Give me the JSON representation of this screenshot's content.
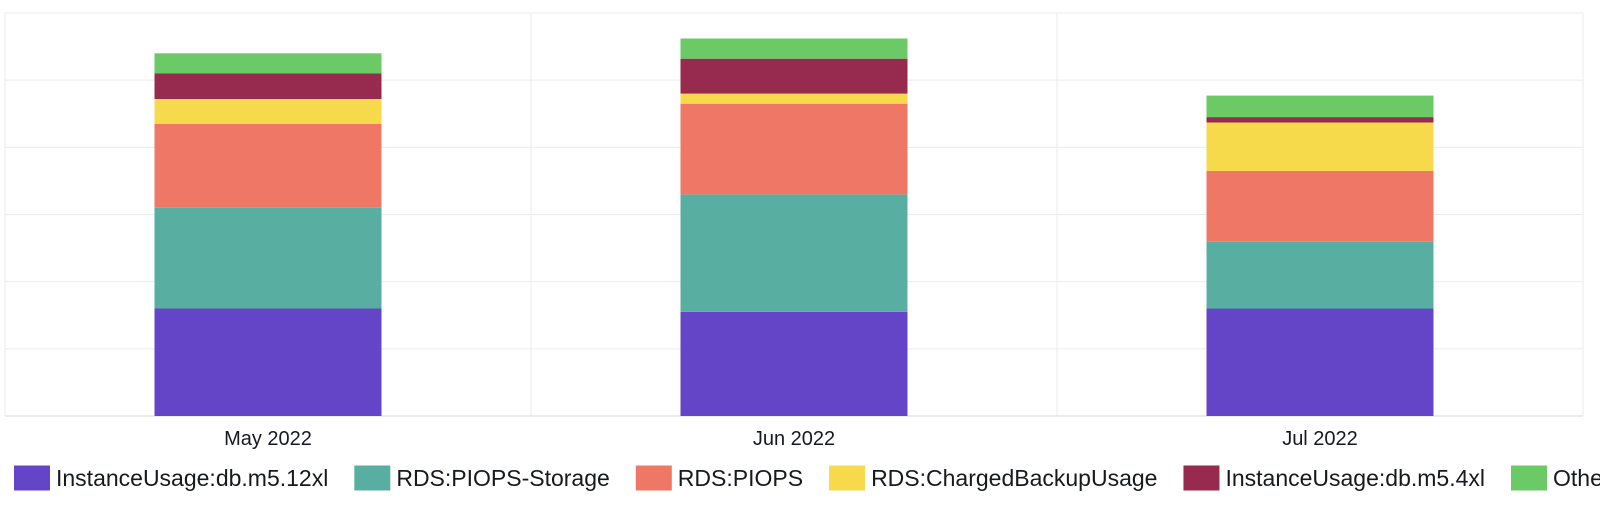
{
  "chart_data": {
    "type": "bar",
    "stacked": true,
    "categories": [
      "May 2022",
      "Jun 2022",
      "Jul 2022"
    ],
    "ylim": [
      0,
      6
    ],
    "y_gridlines": 6,
    "grid": true,
    "y_tick_labels_shown": false,
    "legend_placement": "bottom",
    "series": [
      {
        "name": "InstanceUsage:db.m5.12xl",
        "color": "#6445c8",
        "values": [
          1.6,
          1.55,
          1.6
        ]
      },
      {
        "name": "RDS:PIOPS-Storage",
        "color": "#58afa1",
        "values": [
          1.5,
          1.75,
          1.0
        ]
      },
      {
        "name": "RDS:PIOPS",
        "color": "#ee7766",
        "values": [
          1.25,
          1.35,
          1.05
        ]
      },
      {
        "name": "RDS:ChargedBackupUsage",
        "color": "#f7d94c",
        "values": [
          0.37,
          0.15,
          0.72
        ]
      },
      {
        "name": "InstanceUsage:db.m5.4xl",
        "color": "#962a4f",
        "values": [
          0.38,
          0.52,
          0.08
        ]
      },
      {
        "name": "Others",
        "color": "#6bc966",
        "values": [
          0.3,
          0.3,
          0.32
        ]
      }
    ]
  }
}
